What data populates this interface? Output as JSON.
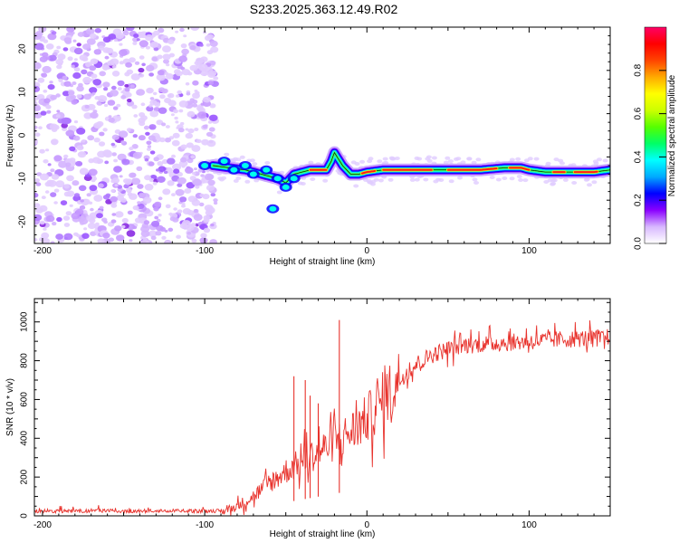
{
  "title": "S233.2025.363.12.49.R02",
  "colors": {
    "line": "#e8322c",
    "axis": "#000000",
    "scatter": "#8a2be2"
  },
  "chart_data": [
    {
      "type": "heatmap",
      "name": "spectrogram",
      "xlabel": "Height of straight line (km)",
      "ylabel": "Frequency (Hz)",
      "xlim": [
        -205,
        150
      ],
      "ylim": [
        -25,
        25
      ],
      "xticks": [
        -200,
        -100,
        0,
        100
      ],
      "xtick_labels": [
        "-200",
        "-100",
        "0",
        "100"
      ],
      "yticks": [
        -20,
        -10,
        0,
        10,
        20
      ],
      "ytick_labels": [
        "-20",
        "-10",
        "0",
        "10",
        "20"
      ],
      "ridge": {
        "x": [
          -95,
          -85,
          -75,
          -65,
          -55,
          -50,
          -45,
          -40,
          -35,
          -30,
          -25,
          -22,
          -20,
          -15,
          -10,
          -5,
          0,
          10,
          30,
          50,
          70,
          85,
          95,
          100,
          110,
          120,
          130,
          140,
          150
        ],
        "y": [
          -7,
          -7.5,
          -8,
          -9,
          -10,
          -11,
          -9,
          -8.5,
          -8,
          -8,
          -8,
          -6,
          -4,
          -7,
          -9,
          -9,
          -8.5,
          -8,
          -8,
          -8,
          -8,
          -7.5,
          -7.5,
          -8,
          -8.5,
          -8.5,
          -8.5,
          -8.5,
          -8
        ]
      },
      "colorbar": {
        "label": "Normalized spectral amplitude",
        "ticks": [
          0.0,
          0.2,
          0.4,
          0.6,
          0.8
        ],
        "tick_labels": [
          "0.0",
          "0.2",
          "0.4",
          "0.6",
          "0.8"
        ],
        "range": [
          0,
          1
        ],
        "colors": [
          "#ffffff",
          "#d8b8ff",
          "#8a00ff",
          "#0000ff",
          "#00aaff",
          "#00ffff",
          "#00ff66",
          "#55ff00",
          "#ccff00",
          "#ffff00",
          "#ffaa00",
          "#ff4400",
          "#ff0000",
          "#ff0066"
        ]
      }
    },
    {
      "type": "line",
      "name": "snr",
      "xlabel": "Height of straight line (km)",
      "ylabel": "SNR (10 * v/v)",
      "xlim": [
        -205,
        150
      ],
      "ylim": [
        0,
        1120
      ],
      "xticks": [
        -200,
        -100,
        0,
        100
      ],
      "xtick_labels": [
        "-200",
        "-100",
        "0",
        "100"
      ],
      "yticks": [
        0,
        200,
        400,
        600,
        800,
        1000
      ],
      "ytick_labels": [
        "0",
        "200",
        "400",
        "600",
        "800",
        "1000"
      ],
      "trend": {
        "x": [
          -205,
          -90,
          -80,
          -70,
          -60,
          -50,
          -40,
          -30,
          -20,
          -10,
          0,
          10,
          20,
          30,
          40,
          50,
          60,
          80,
          100,
          120,
          150
        ],
        "y": [
          20,
          20,
          50,
          100,
          170,
          230,
          280,
          330,
          380,
          430,
          500,
          600,
          700,
          780,
          830,
          860,
          880,
          890,
          900,
          910,
          920
        ]
      },
      "spikes": [
        {
          "x": -45,
          "y": 720
        },
        {
          "x": -38,
          "y": 700
        },
        {
          "x": -35,
          "y": 620
        },
        {
          "x": -30,
          "y": 580
        },
        {
          "x": -17,
          "y": 1010
        }
      ]
    }
  ]
}
